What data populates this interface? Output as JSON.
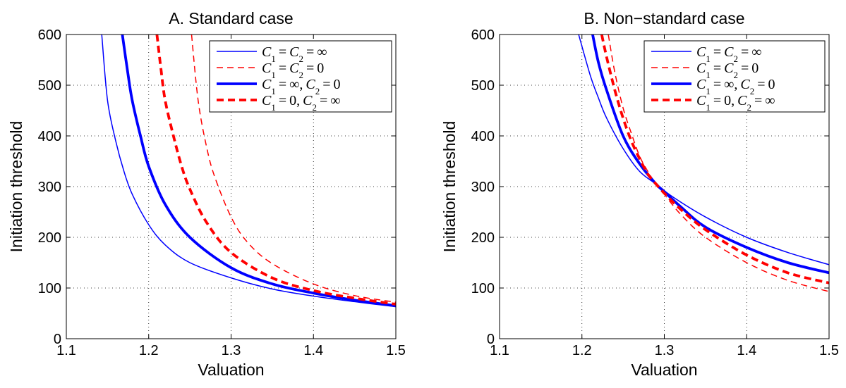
{
  "chart_data": [
    {
      "type": "line",
      "title": "A. Standard case",
      "xlabel": "Valuation",
      "ylabel": "Initiation threshold",
      "xlim": [
        1.1,
        1.5
      ],
      "ylim": [
        0,
        600
      ],
      "xticks": [
        "1.1",
        "1.2",
        "1.3",
        "1.4",
        "1.5"
      ],
      "yticks": [
        "0",
        "100",
        "200",
        "300",
        "400",
        "500",
        "600"
      ],
      "grid": true,
      "legend_position": "top-right",
      "series": [
        {
          "name": "C1 = C2 = ∞",
          "color": "#0000ff",
          "style": "thin-solid",
          "x": [
            1.143,
            1.15,
            1.16,
            1.17,
            1.18,
            1.2,
            1.22,
            1.25,
            1.3,
            1.35,
            1.4,
            1.45,
            1.5
          ],
          "y": [
            600,
            470,
            390,
            330,
            285,
            225,
            185,
            150,
            120,
            98,
            84,
            73,
            63
          ]
        },
        {
          "name": "C1 = C2 = 0",
          "color": "#ff0000",
          "style": "thin-dashed",
          "x": [
            1.252,
            1.26,
            1.27,
            1.28,
            1.3,
            1.32,
            1.35,
            1.4,
            1.45,
            1.5
          ],
          "y": [
            600,
            470,
            380,
            320,
            240,
            190,
            148,
            108,
            85,
            72
          ]
        },
        {
          "name": "C1 = ∞, C2 = 0",
          "color": "#0000ff",
          "style": "thick-solid",
          "x": [
            1.168,
            1.175,
            1.18,
            1.19,
            1.2,
            1.22,
            1.25,
            1.3,
            1.35,
            1.4,
            1.45,
            1.5
          ],
          "y": [
            600,
            520,
            470,
            400,
            340,
            265,
            200,
            140,
            108,
            90,
            76,
            65
          ]
        },
        {
          "name": "C1 = 0, C2 = ∞",
          "color": "#ff0000",
          "style": "thick-dashed",
          "x": [
            1.21,
            1.215,
            1.22,
            1.23,
            1.24,
            1.25,
            1.27,
            1.3,
            1.35,
            1.4,
            1.45,
            1.5
          ],
          "y": [
            600,
            530,
            470,
            400,
            340,
            295,
            230,
            170,
            120,
            95,
            80,
            68
          ]
        }
      ]
    },
    {
      "type": "line",
      "title": "B. Non−standard case",
      "xlabel": "Valuation",
      "ylabel": "Initiation threshold",
      "xlim": [
        1.1,
        1.5
      ],
      "ylim": [
        0,
        600
      ],
      "xticks": [
        "1.1",
        "1.2",
        "1.3",
        "1.4",
        "1.5"
      ],
      "yticks": [
        "0",
        "100",
        "200",
        "300",
        "400",
        "500",
        "600"
      ],
      "grid": true,
      "legend_position": "top-right",
      "series": [
        {
          "name": "C1 = C2 = ∞",
          "color": "#0000ff",
          "style": "thin-solid",
          "x": [
            1.196,
            1.21,
            1.22,
            1.23,
            1.25,
            1.27,
            1.29,
            1.31,
            1.35,
            1.4,
            1.45,
            1.5
          ],
          "y": [
            600,
            520,
            475,
            435,
            375,
            330,
            305,
            280,
            240,
            200,
            170,
            146
          ]
        },
        {
          "name": "C1 = C2 = 0",
          "color": "#ff0000",
          "style": "thin-dashed",
          "x": [
            1.232,
            1.24,
            1.25,
            1.26,
            1.27,
            1.28,
            1.29,
            1.3,
            1.32,
            1.35,
            1.4,
            1.45,
            1.5
          ],
          "y": [
            600,
            525,
            455,
            405,
            360,
            330,
            305,
            285,
            245,
            200,
            150,
            115,
            93
          ]
        },
        {
          "name": "C1 = ∞, C2 = 0",
          "color": "#0000ff",
          "style": "thick-solid",
          "x": [
            1.213,
            1.22,
            1.23,
            1.25,
            1.27,
            1.29,
            1.3,
            1.32,
            1.35,
            1.4,
            1.45,
            1.5
          ],
          "y": [
            600,
            545,
            490,
            400,
            345,
            305,
            290,
            260,
            220,
            180,
            150,
            130
          ]
        },
        {
          "name": "C1 = 0, C2 = ∞",
          "color": "#ff0000",
          "style": "thick-dashed",
          "x": [
            1.224,
            1.23,
            1.24,
            1.25,
            1.26,
            1.27,
            1.28,
            1.29,
            1.3,
            1.32,
            1.35,
            1.4,
            1.45,
            1.5
          ],
          "y": [
            600,
            555,
            490,
            435,
            390,
            355,
            325,
            305,
            287,
            255,
            215,
            165,
            130,
            110
          ]
        }
      ]
    }
  ]
}
